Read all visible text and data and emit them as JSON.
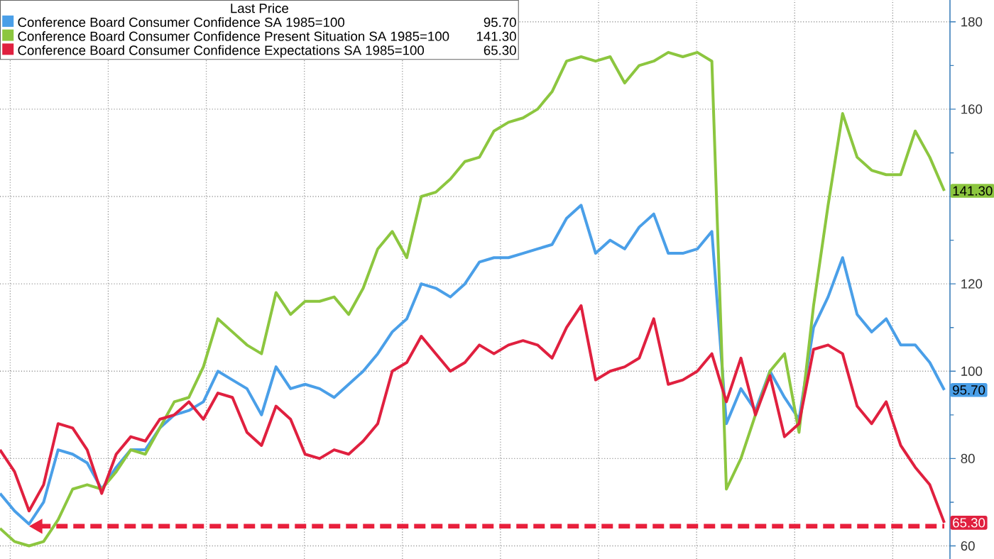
{
  "chart_data": {
    "type": "line",
    "categories": [
      null,
      null,
      null,
      null,
      null,
      null,
      null,
      null,
      null,
      null,
      null,
      null,
      null,
      null,
      null,
      null,
      null,
      null,
      null,
      null,
      null,
      null,
      null,
      null,
      null,
      null,
      null,
      null,
      null,
      null,
      null,
      null,
      null,
      null,
      null,
      null,
      null,
      null,
      null,
      null,
      null,
      null,
      null,
      null,
      null,
      null,
      null,
      null,
      null,
      null,
      null,
      null,
      null,
      null,
      null,
      null,
      null,
      null,
      null,
      null,
      null,
      null,
      null,
      null,
      null,
      null
    ],
    "legend_title": "Last Price",
    "legend": "top left",
    "grid": true,
    "tick_labels": "y",
    "ylim": [
      57,
      185
    ],
    "yticks": [
      60,
      80,
      100,
      120,
      {
        "value": 140,
        "label": null
      },
      160,
      180
    ],
    "series": [
      {
        "name": "Conference Board Consumer Confidence SA 1985=100",
        "color": "#4a9fe8",
        "values": [
          72,
          68,
          65,
          70,
          82,
          81,
          79,
          73,
          78,
          82,
          82,
          87,
          90,
          91,
          93,
          100,
          98,
          96,
          90,
          101,
          96,
          97,
          96,
          94,
          97,
          100,
          104,
          109,
          112,
          120,
          119,
          117,
          120,
          125,
          126,
          126,
          127,
          128,
          129,
          135,
          138,
          127,
          130,
          128,
          133,
          136,
          127,
          127,
          128,
          132,
          88,
          96,
          91,
          100,
          94,
          89,
          110,
          117,
          126,
          113,
          109,
          112,
          106,
          106,
          102,
          95.7
        ],
        "value_labels": [
          null,
          null,
          null,
          null,
          null,
          null,
          null,
          null,
          null,
          null,
          null,
          null,
          null,
          null,
          null,
          null,
          null,
          null,
          null,
          null,
          null,
          null,
          null,
          null,
          null,
          null,
          null,
          null,
          null,
          null,
          null,
          null,
          null,
          null,
          null,
          null,
          null,
          null,
          null,
          null,
          null,
          null,
          null,
          null,
          null,
          null,
          null,
          null,
          null,
          null,
          null,
          null,
          null,
          null,
          null,
          null,
          null,
          null,
          null,
          null,
          null,
          null,
          null,
          null,
          null,
          "95.70"
        ]
      },
      {
        "name": "Conference Board Consumer Confidence Present Situation SA 1985=100",
        "color": "#8cc63f",
        "values": [
          64,
          61,
          60,
          61,
          66,
          73,
          74,
          73,
          77,
          82,
          81,
          87,
          93,
          94,
          101,
          112,
          109,
          106,
          104,
          118,
          113,
          116,
          116,
          117,
          113,
          119,
          128,
          132,
          126,
          140,
          141,
          144,
          148,
          149,
          155,
          157,
          158,
          160,
          164,
          171,
          172,
          171,
          172,
          166,
          170,
          171,
          173,
          172,
          173,
          171,
          73,
          80,
          90,
          100,
          104,
          86,
          115,
          138,
          159,
          149,
          146,
          145,
          145,
          155,
          149,
          141.3
        ],
        "value_labels": [
          null,
          null,
          null,
          null,
          null,
          null,
          null,
          null,
          null,
          null,
          null,
          null,
          null,
          null,
          null,
          null,
          null,
          null,
          null,
          null,
          null,
          null,
          null,
          null,
          null,
          null,
          null,
          null,
          null,
          null,
          null,
          null,
          null,
          null,
          null,
          null,
          null,
          null,
          null,
          null,
          null,
          null,
          null,
          null,
          null,
          null,
          null,
          null,
          null,
          null,
          null,
          null,
          null,
          null,
          null,
          null,
          null,
          null,
          null,
          null,
          null,
          null,
          null,
          null,
          null,
          "141.30"
        ]
      },
      {
        "name": "Conference Board Consumer Confidence Expectations SA 1985=100",
        "color": "#e0203f",
        "values": [
          82,
          77,
          68,
          74,
          88,
          87,
          82,
          72,
          81,
          85,
          84,
          89,
          90,
          93,
          89,
          95,
          94,
          86,
          83,
          92,
          89,
          81,
          80,
          82,
          81,
          84,
          88,
          100,
          102,
          108,
          104,
          100,
          102,
          106,
          104,
          106,
          107,
          106,
          103,
          110,
          115,
          98,
          100,
          101,
          103,
          112,
          97,
          98,
          100,
          104,
          93,
          103,
          90,
          99,
          85,
          88,
          105,
          106,
          104,
          92,
          88,
          93,
          83,
          78,
          74,
          65.3
        ],
        "value_labels": [
          null,
          null,
          null,
          null,
          null,
          null,
          null,
          null,
          null,
          null,
          null,
          null,
          null,
          null,
          null,
          null,
          null,
          null,
          null,
          null,
          null,
          null,
          null,
          null,
          null,
          null,
          null,
          null,
          null,
          null,
          null,
          null,
          null,
          null,
          null,
          null,
          null,
          null,
          null,
          null,
          null,
          null,
          null,
          null,
          null,
          null,
          null,
          null,
          null,
          null,
          null,
          null,
          null,
          null,
          null,
          null,
          null,
          null,
          null,
          null,
          null,
          null,
          null,
          null,
          null,
          "65.30"
        ]
      }
    ],
    "ref_lines": [
      {
        "axis": "y",
        "value": 64.5,
        "color": "#e8203c",
        "line_style": "dashed"
      }
    ]
  }
}
